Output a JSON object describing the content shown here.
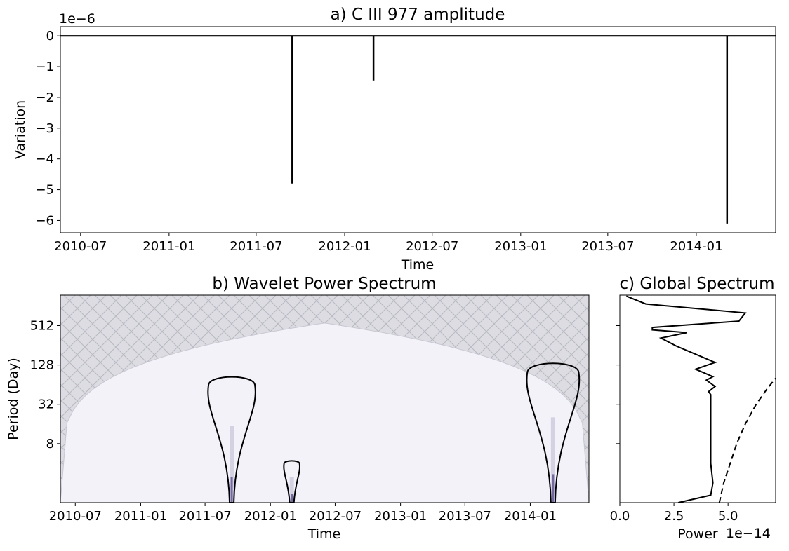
{
  "chart_data": [
    {
      "type": "line",
      "title": "a) C III 977 amplitude",
      "xlabel": "Time",
      "ylabel": "Variation",
      "offset_text": "1e−6",
      "xlim": [
        "2010-05-20",
        "2014-06-15"
      ],
      "ylim": [
        -6.4,
        0.3
      ],
      "x_ticks": [
        "2010-07",
        "2011-01",
        "2011-07",
        "2012-01",
        "2012-07",
        "2013-01",
        "2013-07",
        "2014-01"
      ],
      "y_ticks": [
        "0",
        "−1",
        "−2",
        "−3",
        "−4",
        "−5",
        "−6"
      ],
      "baseline": 0,
      "spikes": [
        {
          "date": "2011-09-14",
          "value": -4.8
        },
        {
          "date": "2012-03-01",
          "value": -1.45
        },
        {
          "date": "2014-03-06",
          "value": -6.1
        }
      ]
    },
    {
      "type": "heatmap",
      "title": "b) Wavelet Power Spectrum",
      "xlabel": "Time",
      "ylabel": "Period (Day)",
      "xlim": [
        "2010-05-20",
        "2014-06-15"
      ],
      "y_scale": "log2",
      "ylim_days": [
        1,
        1500
      ],
      "x_ticks": [
        "2010-07",
        "2011-01",
        "2011-07",
        "2012-01",
        "2012-07",
        "2013-01",
        "2013-07",
        "2014-01"
      ],
      "y_ticks": [
        "8",
        "32",
        "128",
        "512"
      ],
      "cone_of_influence_peak_days": 560,
      "significance_contours": [
        {
          "center": "2011-09-14",
          "period_range_days": [
            1,
            92
          ]
        },
        {
          "center": "2012-03-01",
          "period_range_days": [
            1,
            4.5
          ]
        },
        {
          "center": "2014-03-06",
          "period_range_days": [
            1,
            150
          ]
        }
      ]
    },
    {
      "type": "line",
      "title": "c) Global Spectrum",
      "xlabel": "Power",
      "offset_text": "1e−14",
      "xlim": [
        0,
        7.2
      ],
      "x_ticks": [
        "0.0",
        "2.5",
        "5.0"
      ],
      "y_scale": "log2",
      "ylim_days": [
        1,
        1500
      ],
      "series": [
        {
          "style": "solid",
          "points": [
            [
              2.7,
              1
            ],
            [
              4.2,
              1.3
            ],
            [
              4.3,
              2
            ],
            [
              4.2,
              4
            ],
            [
              4.2,
              10
            ],
            [
              4.2,
              30
            ],
            [
              4.2,
              45
            ],
            [
              4.1,
              50
            ],
            [
              4.4,
              60
            ],
            [
              4.0,
              75
            ],
            [
              4.3,
              85
            ],
            [
              3.5,
              110
            ],
            [
              4.4,
              140
            ],
            [
              2.6,
              250
            ],
            [
              1.9,
              330
            ],
            [
              3.1,
              400
            ],
            [
              1.5,
              440
            ],
            [
              1.5,
              480
            ],
            [
              5.5,
              600
            ],
            [
              5.8,
              800
            ],
            [
              1.2,
              1100
            ],
            [
              0.3,
              1450
            ]
          ]
        },
        {
          "style": "dashed",
          "points": [
            [
              4.6,
              1
            ],
            [
              4.8,
              2
            ],
            [
              5.1,
              4
            ],
            [
              5.4,
              8
            ],
            [
              5.8,
              16
            ],
            [
              6.3,
              32
            ],
            [
              6.8,
              55
            ],
            [
              7.2,
              80
            ]
          ]
        }
      ]
    }
  ]
}
